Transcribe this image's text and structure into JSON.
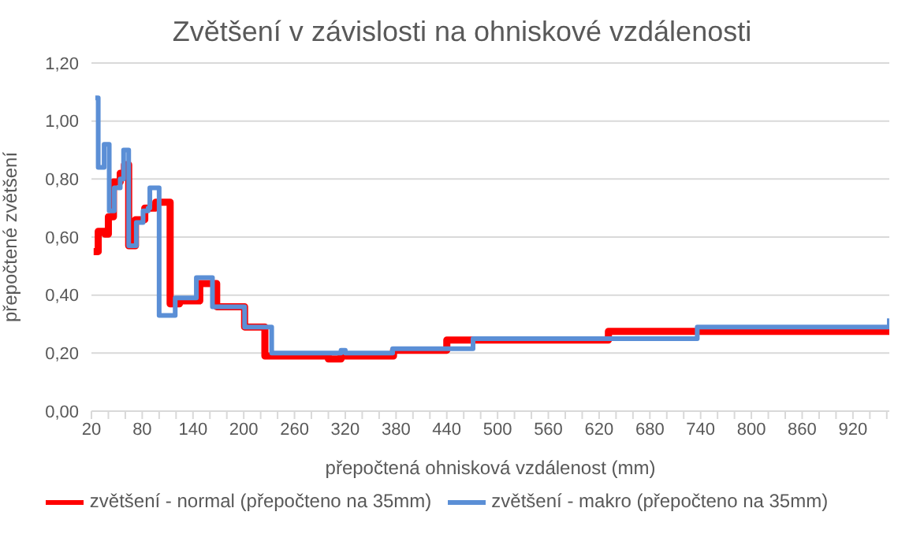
{
  "chart_data": {
    "type": "step",
    "title": "Zvětšení v závislosti na ohniskové vzdálenosti",
    "xlabel": "přepočtená ohnisková vzdálenost (mm)",
    "ylabel": "přepočtené  zvětšení",
    "xlim": [
      20,
      963
    ],
    "xticks": [
      20,
      {
        "value": 40,
        "label": null
      },
      {
        "value": 60,
        "label": null
      },
      80,
      {
        "value": 100,
        "label": null
      },
      {
        "value": 120,
        "label": null
      },
      140,
      {
        "value": 160,
        "label": null
      },
      {
        "value": 180,
        "label": null
      },
      200,
      {
        "value": 220,
        "label": null
      },
      {
        "value": 240,
        "label": null
      },
      260,
      {
        "value": 280,
        "label": null
      },
      {
        "value": 300,
        "label": null
      },
      320,
      {
        "value": 340,
        "label": null
      },
      {
        "value": 360,
        "label": null
      },
      380,
      {
        "value": 400,
        "label": null
      },
      {
        "value": 420,
        "label": null
      },
      440,
      {
        "value": 460,
        "label": null
      },
      {
        "value": 480,
        "label": null
      },
      500,
      {
        "value": 520,
        "label": null
      },
      {
        "value": 540,
        "label": null
      },
      560,
      {
        "value": 580,
        "label": null
      },
      {
        "value": 600,
        "label": null
      },
      620,
      {
        "value": 640,
        "label": null
      },
      {
        "value": 660,
        "label": null
      },
      680,
      {
        "value": 700,
        "label": null
      },
      {
        "value": 720,
        "label": null
      },
      740,
      {
        "value": 760,
        "label": null
      },
      {
        "value": 780,
        "label": null
      },
      800,
      {
        "value": 820,
        "label": null
      },
      {
        "value": 840,
        "label": null
      },
      860,
      {
        "value": 880,
        "label": null
      },
      {
        "value": 900,
        "label": null
      },
      920,
      {
        "value": 940,
        "label": null
      },
      {
        "value": 960,
        "label": null
      }
    ],
    "ylim": [
      0,
      1.2
    ],
    "yticks": [
      {
        "value": 0,
        "label": "0,00"
      },
      {
        "value": 0.2,
        "label": "0,20"
      },
      {
        "value": 0.4,
        "label": "0,40"
      },
      {
        "value": 0.6,
        "label": "0,60"
      },
      {
        "value": 0.8,
        "label": "0,80"
      },
      {
        "value": 1.0,
        "label": "1,00"
      },
      {
        "value": 1.2,
        "label": "1,20"
      }
    ],
    "grid": "y",
    "legend": "bottom",
    "marker": "none",
    "line_style": "solid",
    "series": [
      {
        "name": "zvětšení - normal (přepočteno na 35mm)",
        "color": "#ff0000",
        "x": [
          22.6,
          28,
          36,
          40,
          46,
          54,
          59,
          64,
          72,
          83,
          96,
          113,
          124,
          148,
          168,
          201,
          225,
          300,
          315,
          377,
          440,
          631,
          963
        ],
        "values": [
          0.55,
          0.62,
          0.61,
          0.67,
          0.79,
          0.82,
          0.85,
          0.57,
          0.66,
          0.7,
          0.72,
          0.37,
          0.38,
          0.44,
          0.36,
          0.29,
          0.19,
          0.18,
          0.19,
          0.21,
          0.245,
          0.275,
          0.275
        ]
      },
      {
        "name": "zvětšení - makro (přepočteno na 35mm)",
        "color": "#5b8fd6",
        "x": [
          24.6,
          28,
          35,
          41,
          47,
          54,
          58,
          64,
          73,
          81,
          87,
          89,
          100,
          119,
          144,
          163,
          201,
          233,
          315,
          320,
          376,
          471,
          736,
          962,
          963
        ],
        "values": [
          1.08,
          0.84,
          0.92,
          0.69,
          0.77,
          0.8,
          0.9,
          0.57,
          0.65,
          0.69,
          0.7,
          0.77,
          0.33,
          0.39,
          0.46,
          0.36,
          0.29,
          0.2,
          0.21,
          0.2,
          0.215,
          0.25,
          0.29,
          0.29,
          0.32
        ]
      }
    ]
  }
}
